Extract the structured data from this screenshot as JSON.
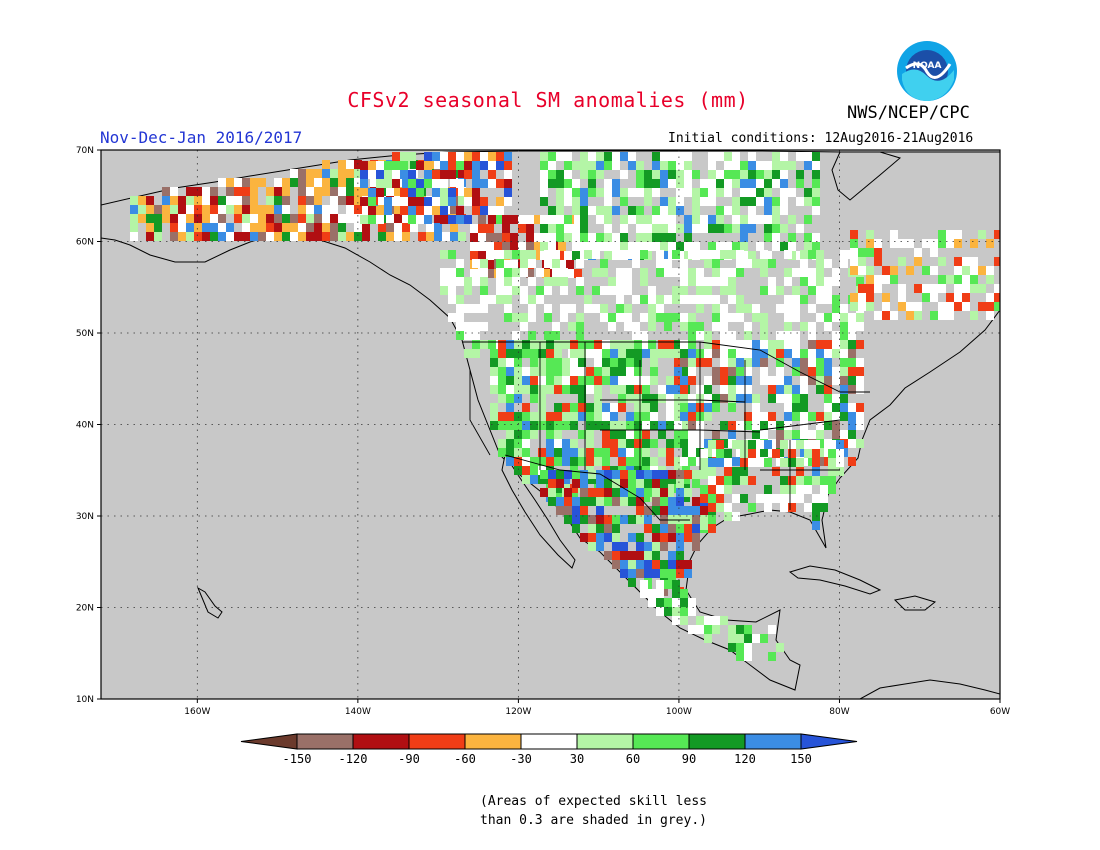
{
  "title": "CFSv2 seasonal SM anomalies (mm)",
  "org": "NWS/NCEP/CPC",
  "logo_text": "NOAA",
  "period": "Nov-Dec-Jan 2016/2017",
  "initial_conditions": "Initial conditions: 12Aug2016-21Aug2016",
  "note_line1": "(Areas of expected skill less",
  "note_line2": "than 0.3 are shaded in grey.)",
  "map": {
    "lon_range": [
      -172,
      -60
    ],
    "lat_range": [
      10,
      70
    ],
    "lat_labels": [
      "10N",
      "20N",
      "30N",
      "40N",
      "50N",
      "60N",
      "70N"
    ],
    "lon_labels": [
      "160W",
      "140W",
      "120W",
      "100W",
      "80W",
      "60W"
    ],
    "colors": {
      "ocean": "#c8c8c8",
      "land_white": "#ffffff",
      "grey": "#c8c8c8"
    }
  },
  "colorbar": {
    "labels": [
      "-150",
      "-120",
      "-90",
      "-60",
      "-30",
      "30",
      "60",
      "90",
      "120",
      "150"
    ],
    "colors": [
      "#6b3a2c",
      "#9a7068",
      "#b10f12",
      "#f03d16",
      "#fbb43f",
      "#ffffff",
      "#b4f5a6",
      "#56e855",
      "#139a24",
      "#3b8de4",
      "#2754d8"
    ]
  }
}
